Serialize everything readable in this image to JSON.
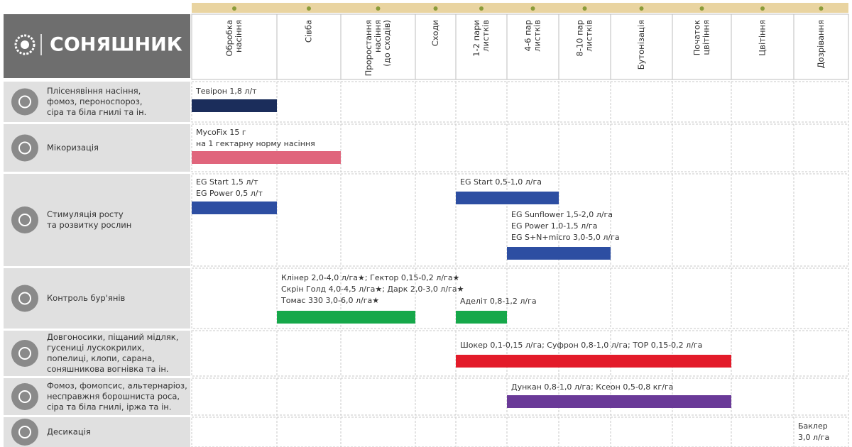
{
  "title": "СОНЯШНИК",
  "stages": [
    [
      "Обробка",
      "насіння"
    ],
    [
      "Сівба"
    ],
    [
      "Проростання",
      "насіння",
      "(до сходів)"
    ],
    [
      "Сходи"
    ],
    [
      "1-2 пари",
      "листків"
    ],
    [
      "4-6 пар",
      "листків"
    ],
    [
      "8-10 пар",
      "листків"
    ],
    [
      "Бутонізація"
    ],
    [
      "Початок",
      "цвітіння"
    ],
    [
      "Цвітіння"
    ],
    [
      "Дозрівання"
    ]
  ],
  "rows": [
    {
      "label": [
        "Плісенявіння насіння,",
        "фомоз, пероноспороз,",
        "сіра та біла гнилі та ін."
      ],
      "treatments": [
        {
          "lines": [
            "Тевірон 1,8 л/т"
          ]
        }
      ]
    },
    {
      "label": [
        "Мікоризація"
      ],
      "treatments": [
        {
          "lines": [
            "MycoFix 15 г",
            "на 1 гектарну норму насіння"
          ]
        }
      ]
    },
    {
      "label": [
        "Стимуляція росту",
        "та розвитку рослин"
      ],
      "treatments": [
        {
          "lines": [
            "EG Start 1,5 л/т",
            "EG Power 0,5 л/т"
          ]
        },
        {
          "lines": [
            "EG Start 0,5-1,0 л/га"
          ]
        },
        {
          "lines": [
            "EG Sunflower 1,5-2,0 л/га",
            "EG Power 1,0-1,5 л/га",
            "EG S+N+micro 3,0-5,0 л/га"
          ]
        }
      ]
    },
    {
      "label": [
        "Контроль бур'янів"
      ],
      "treatments": [
        {
          "lines": [
            "Клінер 2,0-4,0 л/га★; Гектор 0,15-0,2 л/га★",
            "Скрін Голд 4,0-4,5 л/га★; Дарк 2,0-3,0 л/га★",
            "Томас 330 3,0-6,0 л/га★"
          ]
        },
        {
          "lines": [
            "Аделіт 0,8-1,2 л/га"
          ]
        }
      ]
    },
    {
      "label": [
        "Довгоносики, піщаний мідляк,",
        "гусениці лускокрилих,",
        "попелиці, клопи, сарана,",
        "соняшникова вогнівка та ін."
      ],
      "treatments": [
        {
          "lines": [
            "Шокер 0,1-0,15 л/га; Суфрон 0,8-1,0 л/га; TOP 0,15-0,2 л/га"
          ]
        }
      ]
    },
    {
      "label": [
        "Фомоз, фомопсис, альтернаріоз,",
        "несправжня борошниста роса,",
        "сіра та біла гнилі, іржа та ін."
      ],
      "treatments": [
        {
          "lines": [
            "Дункан 0,8-1,0 л/га; Ксеон 0,5-0,8 кг/га"
          ]
        }
      ]
    },
    {
      "label": [
        "Десикація"
      ],
      "treatments": [
        {
          "lines": [
            "Баклер",
            "3,0 л/га"
          ]
        }
      ]
    }
  ]
}
